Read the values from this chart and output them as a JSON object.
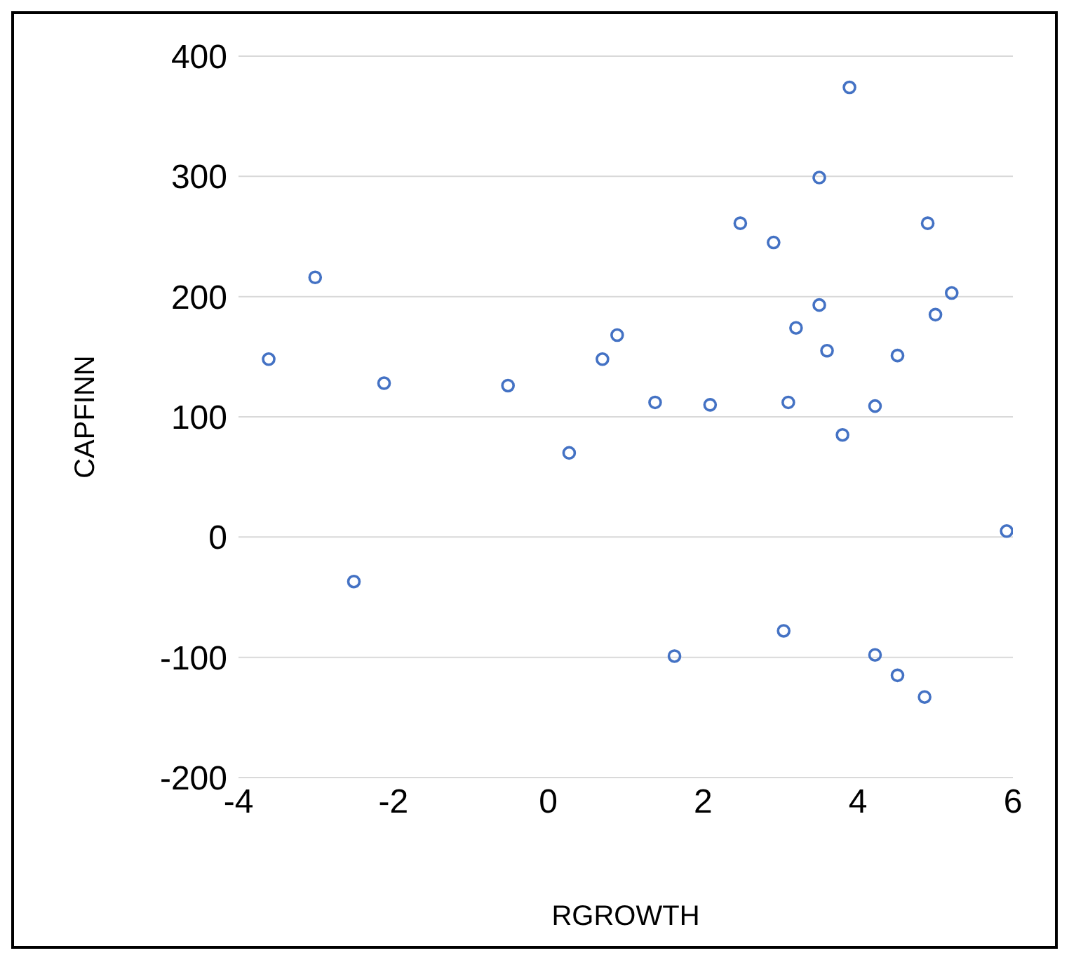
{
  "chart_data": {
    "type": "scatter",
    "xlabel": "RGROWTH",
    "ylabel": "CAPFINN",
    "x": [
      -3.61,
      -3.01,
      -2.12,
      -0.52,
      0.27,
      0.7,
      0.89,
      1.38,
      2.09,
      2.48,
      2.91,
      3.2,
      3.1,
      3.5,
      3.5,
      3.6,
      3.89,
      3.8,
      4.22,
      4.51,
      4.9,
      5.0,
      5.21,
      5.92,
      -2.51,
      1.63,
      3.04,
      4.22,
      4.51,
      4.86
    ],
    "values": [
      148,
      216,
      128,
      126,
      70,
      148,
      168,
      112,
      110,
      261,
      245,
      174,
      112,
      193,
      299,
      155,
      374,
      85,
      109,
      151,
      261,
      185,
      203,
      5,
      -37,
      -99,
      -78,
      -98,
      -115,
      -133
    ],
    "color": "#4472c4",
    "marker": "circle",
    "xlim": [
      -4,
      6
    ],
    "xticks": [
      -4,
      -2,
      0,
      2,
      4,
      6
    ],
    "ylim": [
      -200,
      400
    ],
    "yticks": [
      -200,
      -100,
      0,
      100,
      200,
      300,
      400
    ],
    "grid": "y",
    "legend": false
  }
}
